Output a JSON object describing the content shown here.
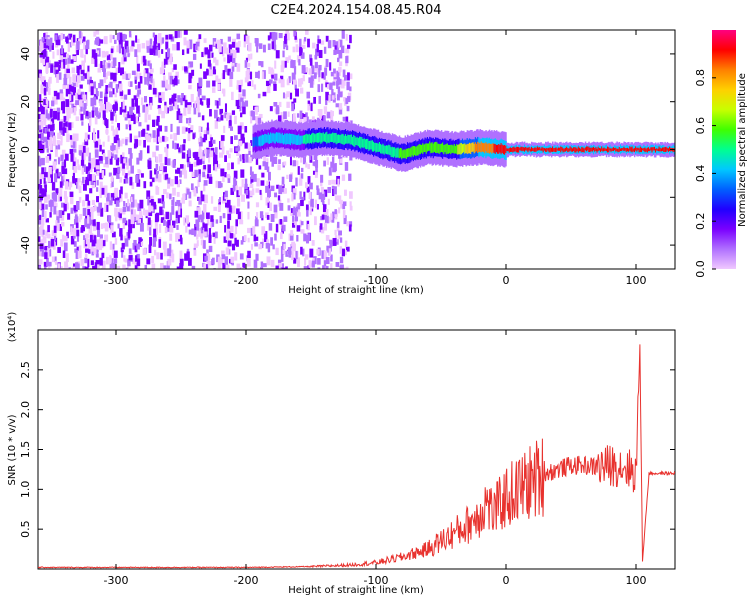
{
  "title": "C2E4.2024.154.08.45.R04",
  "colors": {
    "snr_line": "#e8322e",
    "ridge_core": "#ff2020",
    "noise": "#7a1ee0",
    "colormap": [
      "#f0c8ff",
      "#b070ff",
      "#7a00ff",
      "#2000ff",
      "#0060ff",
      "#00c8ff",
      "#00ff90",
      "#40ff00",
      "#c8ff00",
      "#ffd000",
      "#ff8000",
      "#ff0000",
      "#ff0080"
    ]
  },
  "chart_data": [
    {
      "type": "heatmap",
      "xlabel": "Height of straight line (km)",
      "ylabel": "Frequency (Hz)",
      "xlim": [
        -360,
        130
      ],
      "ylim": [
        -50,
        50
      ],
      "xticks": [
        -300,
        -200,
        -100,
        0,
        100
      ],
      "yticks": [
        -40,
        -20,
        0,
        20,
        40
      ],
      "colorbar": {
        "label": "Normalized spectral amplitude",
        "range": [
          0.0,
          1.0
        ],
        "ticks": [
          0.0,
          0.2,
          0.4,
          0.6,
          0.8
        ]
      },
      "noise_region_x": [
        -360,
        -120
      ],
      "ridge": {
        "x": [
          -195,
          -180,
          -160,
          -140,
          -120,
          -100,
          -80,
          -60,
          -40,
          -20,
          0,
          20,
          40,
          60,
          80,
          100,
          130
        ],
        "freq": [
          3,
          5,
          4,
          5,
          4,
          1,
          -2,
          1,
          0,
          1,
          0,
          0,
          0,
          0,
          0,
          0,
          0
        ],
        "amplitude": [
          0.35,
          0.45,
          0.45,
          0.5,
          0.5,
          0.5,
          0.55,
          0.6,
          0.6,
          0.85,
          0.9,
          0.95,
          0.95,
          0.95,
          0.95,
          0.9,
          0.95
        ]
      }
    },
    {
      "type": "line",
      "xlabel": "Height of straight line (km)",
      "ylabel": "SNR (10 * v/v)",
      "multiplier": "(x10⁴)",
      "xlim": [
        -360,
        130
      ],
      "ylim": [
        0.0,
        3.0
      ],
      "xticks": [
        -300,
        -200,
        -100,
        0,
        100
      ],
      "yticks": [
        0.5,
        1.0,
        1.5,
        2.0,
        2.5
      ],
      "series": [
        {
          "x": [
            -360,
            -300,
            -250,
            -200,
            -150,
            -120,
            -100,
            -80,
            -60,
            -50,
            -40,
            -30,
            -20,
            -15,
            -10,
            0,
            10,
            20,
            30,
            40,
            50,
            60,
            70,
            80,
            90,
            100,
            103,
            105,
            110,
            130
          ],
          "values": [
            0.02,
            0.02,
            0.02,
            0.02,
            0.03,
            0.05,
            0.08,
            0.15,
            0.25,
            0.35,
            0.45,
            0.55,
            0.7,
            0.85,
            0.7,
            0.9,
            1.0,
            1.1,
            1.2,
            1.25,
            1.3,
            1.3,
            1.28,
            1.3,
            1.3,
            1.2,
            2.8,
            0.1,
            1.2,
            1.2
          ]
        }
      ]
    }
  ]
}
